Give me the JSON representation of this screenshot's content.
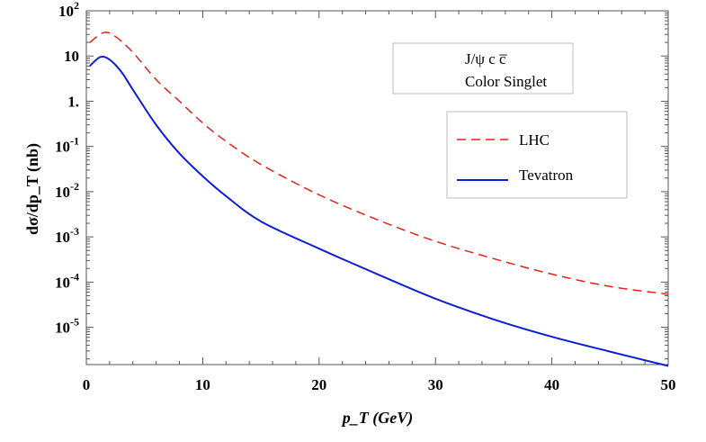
{
  "chart_data": {
    "type": "line",
    "title": "",
    "xlabel": "p_T (GeV)",
    "ylabel": "dσ/dp_T (nb)",
    "xlim": [
      0,
      50
    ],
    "ylim": [
      1.5e-06,
      100
    ],
    "yscale": "log",
    "grid": false,
    "x_ticks": [
      0,
      10,
      20,
      30,
      40,
      50
    ],
    "x_tick_labels": [
      "0",
      "10",
      "20",
      "30",
      "40",
      "50"
    ],
    "y_ticks": [
      100,
      10,
      1,
      0.1,
      0.01,
      0.001,
      0.0001,
      1e-05
    ],
    "y_tick_labels": [
      {
        "base": "10",
        "exp": "2"
      },
      {
        "base": "10",
        "exp": ""
      },
      {
        "base": "1.",
        "exp": ""
      },
      {
        "base": "10",
        "exp": "-1"
      },
      {
        "base": "10",
        "exp": "-2"
      },
      {
        "base": "10",
        "exp": "-3"
      },
      {
        "base": "10",
        "exp": "-4"
      },
      {
        "base": "10",
        "exp": "-5"
      }
    ],
    "annotation": {
      "line1": "J/ψ c c̅",
      "line2": "Color Singlet"
    },
    "legend_position": "right",
    "series": [
      {
        "name": "LHC",
        "color": "#e8201a",
        "style": "dashed",
        "x": [
          0.3,
          1.5,
          2.5,
          4,
          6,
          8,
          10,
          12,
          15,
          20,
          25,
          30,
          35,
          40,
          45,
          50
        ],
        "y": [
          20,
          33,
          27,
          12,
          3,
          1,
          0.33,
          0.13,
          0.04,
          0.0085,
          0.0024,
          0.0008,
          0.00033,
          0.00015,
          8e-05,
          5.4e-05
        ]
      },
      {
        "name": "Tevatron",
        "color": "#0d1fd6",
        "style": "solid",
        "x": [
          0.3,
          1.2,
          2,
          3,
          4,
          6,
          8,
          10,
          12,
          15,
          20,
          25,
          30,
          35,
          40,
          45,
          50
        ],
        "y": [
          6,
          9.5,
          8.3,
          4.5,
          1.8,
          0.3,
          0.07,
          0.022,
          0.008,
          0.0022,
          0.00055,
          0.00015,
          4.3e-05,
          1.5e-05,
          6.2e-06,
          2.9e-06,
          1.4e-06
        ]
      }
    ]
  }
}
